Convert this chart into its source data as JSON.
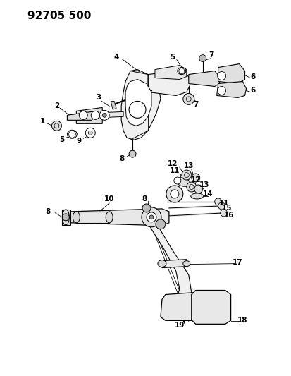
{
  "title": "92705 500",
  "bg_color": "#ffffff",
  "line_color": "#000000",
  "fig_width": 4.13,
  "fig_height": 5.33,
  "dpi": 100
}
